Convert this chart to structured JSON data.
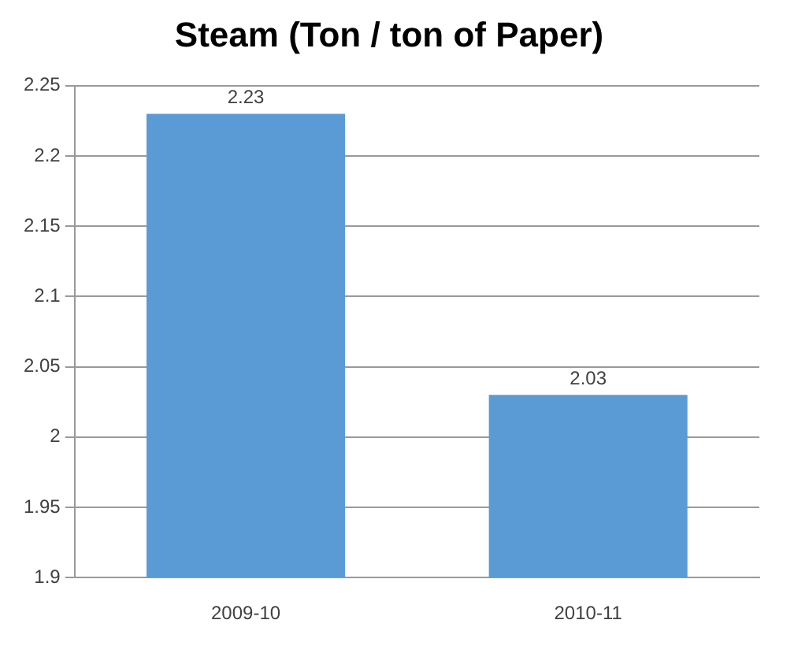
{
  "chart_data": {
    "type": "bar",
    "title": "Steam (Ton / ton of Paper)",
    "categories": [
      "2009-10",
      "2010-11"
    ],
    "values": [
      2.23,
      2.03
    ],
    "color": "#5b9bd5",
    "ylim": [
      1.9,
      2.25
    ],
    "yticks": [
      1.9,
      1.95,
      2,
      2.05,
      2.1,
      2.15,
      2.2,
      2.25
    ],
    "grid": "y",
    "data_labels": true
  }
}
